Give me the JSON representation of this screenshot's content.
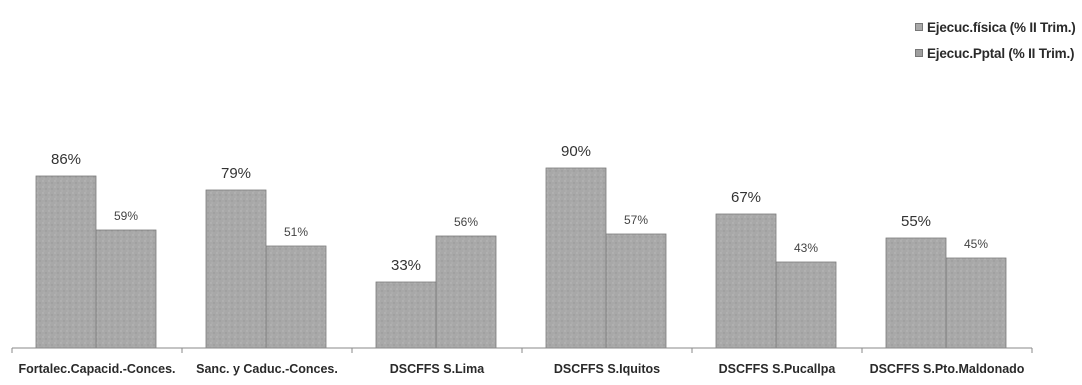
{
  "chart_data": {
    "type": "bar",
    "categories": [
      "Fortalec.Capacid.-Conces.",
      "Sanc. y Caduc.-Conces.",
      "DSCFFS S.Lima",
      "DSCFFS S.Iquitos",
      "DSCFFS S.Pucallpa",
      "DSCFFS S.Pto.Maldonado"
    ],
    "series": [
      {
        "name": "Ejecuc.física (% II Trim.)",
        "values": [
          86,
          79,
          33,
          90,
          67,
          55
        ],
        "labels": [
          "86%",
          "79%",
          "33%",
          "90%",
          "67%",
          "55%"
        ],
        "color": "#a9a9a9"
      },
      {
        "name": "Ejecuc.Pptal (% II Trim.)",
        "values": [
          59,
          51,
          56,
          57,
          43,
          45
        ],
        "labels": [
          "59%",
          "51%",
          "56%",
          "57%",
          "43%",
          "45%"
        ],
        "color": "#9e9e9e"
      }
    ],
    "ylim": [
      0,
      100
    ],
    "grid": false,
    "legend_position": "top-right"
  }
}
